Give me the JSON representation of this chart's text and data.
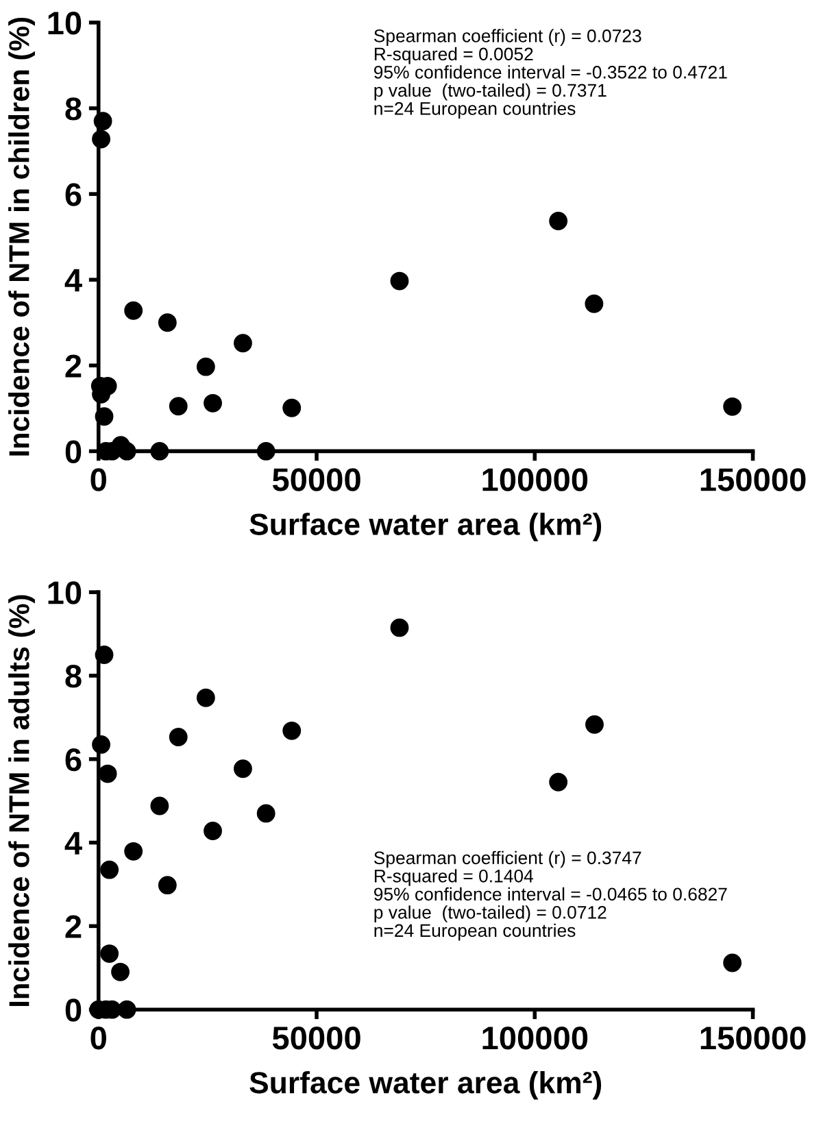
{
  "chart_data": [
    {
      "type": "scatter",
      "xlabel": "Surface water area (km²)",
      "ylabel": "Incidence of NTM in children (%)",
      "xlim": [
        0,
        150000
      ],
      "ylim": [
        0,
        10
      ],
      "xticks": [
        0,
        50000,
        100000,
        150000
      ],
      "yticks": [
        0,
        2,
        4,
        6,
        8,
        10
      ],
      "marker": "circle",
      "annotations": [
        "Spearman coefficient (r) = 0.0723",
        "R-squared = 0.0052",
        "95% confidence interval = -0.3522 to 0.4721",
        "p value  (two-tailed) = 0.7371",
        "n=24 European countries"
      ],
      "series": [
        {
          "color": "#000000",
          "x": [
            1000,
            600,
            8000,
            15800,
            33100,
            24600,
            18300,
            26200,
            44300,
            400,
            2100,
            600,
            1300,
            1700,
            3100,
            5100,
            6500,
            14000,
            38400,
            69000,
            105400,
            113600,
            145300
          ],
          "values": [
            7.7,
            7.28,
            3.28,
            3.0,
            2.52,
            1.97,
            1.05,
            1.12,
            1.01,
            1.52,
            1.52,
            1.33,
            0.81,
            0,
            0,
            0.14,
            0,
            0,
            0,
            3.97,
            5.37,
            3.44,
            1.04
          ]
        }
      ]
    },
    {
      "type": "scatter",
      "xlabel": "Surface water area (km²)",
      "ylabel": "Incidence of NTM in adults (%)",
      "xlim": [
        0,
        150000
      ],
      "ylim": [
        0,
        10
      ],
      "xticks": [
        0,
        50000,
        100000,
        150000
      ],
      "yticks": [
        0,
        2,
        4,
        6,
        8,
        10
      ],
      "marker": "circle",
      "annotations": [
        "Spearman coefficient (r) = 0.3747",
        "R-squared = 0.1404",
        "95% confidence interval = -0.0465 to 0.6827",
        "p value  (two-tailed) = 0.0712",
        "n=24 European countries"
      ],
      "series": [
        {
          "color": "#000000",
          "x": [
            1300,
            600,
            2100,
            2500,
            2500,
            5000,
            8000,
            15800,
            14000,
            18300,
            24600,
            26200,
            33100,
            38400,
            44300,
            69000,
            113700,
            105400,
            145300,
            0,
            1700,
            3100,
            6500
          ],
          "values": [
            8.5,
            6.35,
            5.65,
            3.35,
            1.34,
            0.9,
            3.79,
            2.98,
            4.88,
            6.53,
            7.47,
            4.28,
            5.77,
            4.7,
            6.68,
            9.15,
            6.83,
            5.45,
            1.12,
            0,
            0,
            0,
            0
          ]
        }
      ]
    }
  ]
}
